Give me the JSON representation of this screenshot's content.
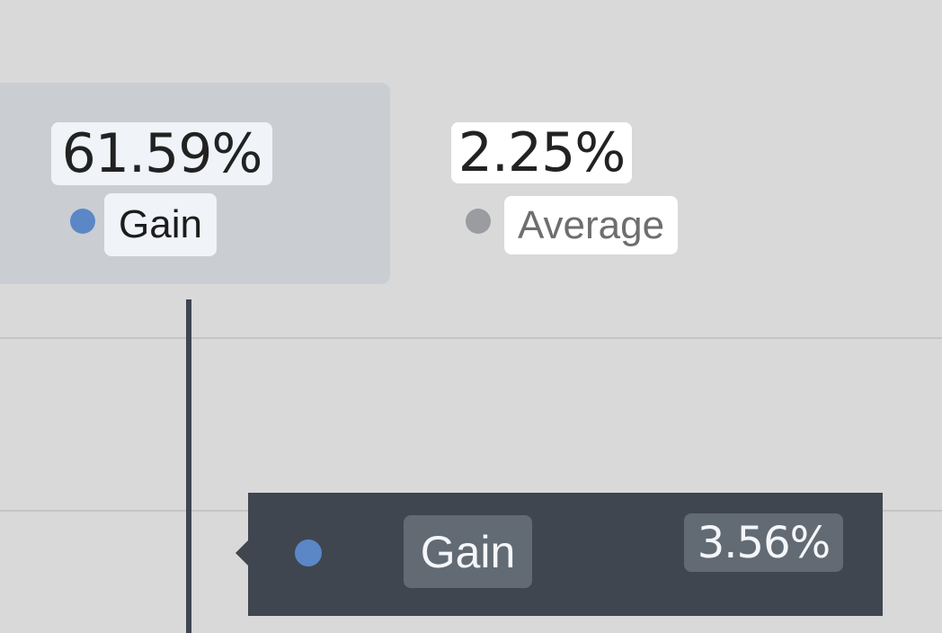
{
  "legend": {
    "items": [
      {
        "value": "61.59%",
        "label": "Gain",
        "color": "#5b87c7",
        "selected": true
      },
      {
        "value": "2.25%",
        "label": "Average",
        "color": "#9a9c9f",
        "selected": false
      }
    ]
  },
  "tooltip": {
    "label": "Gain",
    "value": "3.56%",
    "color": "#5b87c7"
  }
}
